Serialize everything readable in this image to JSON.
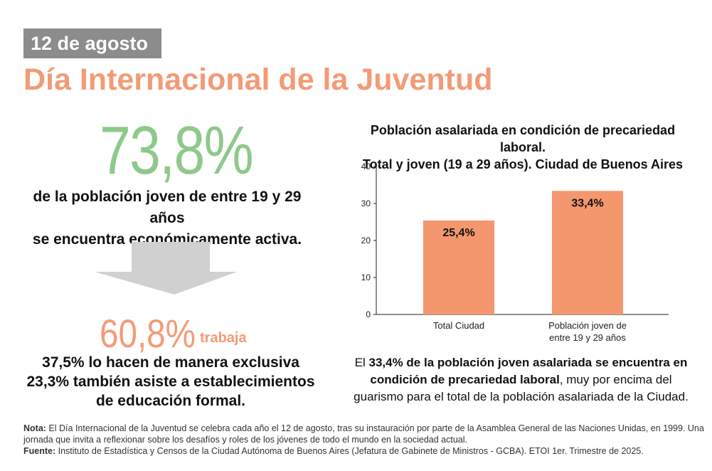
{
  "header": {
    "date": "12 de agosto",
    "title": "Día Internacional de la Juventud"
  },
  "left": {
    "big_stat": "73,8%",
    "big_stat_desc_line1": "de la población joven de entre 19 y 29 años",
    "big_stat_desc_line2": "se encuentra económicamente activa.",
    "stat2_value": "60,8%",
    "stat2_word": "trabaja",
    "detail_line1": "37,5% lo hacen de manera exclusiva",
    "detail_line2": "23,3% también asiste a establecimientos",
    "detail_line3": "de educación formal."
  },
  "colors": {
    "accent_orange": "#f29b77",
    "accent_green": "#8ec98b",
    "badge_gray": "#8c8c8c",
    "bar_fill": "#f4976f",
    "arrow_gray": "#d0d0d0"
  },
  "chart_data": {
    "type": "bar",
    "title_line1": "Población asalariada en condición de precariedad laboral.",
    "title_line2": "Total y joven (19 a 29 años). Ciudad de Buenos Aires",
    "categories": [
      "Total Ciudad",
      "Población joven de entre 19 y 29 años"
    ],
    "category_lines": [
      [
        "Total Ciudad"
      ],
      [
        "Población joven de",
        "entre 19 y 29 años"
      ]
    ],
    "values": [
      25.4,
      33.4
    ],
    "data_labels": [
      "25,4%",
      "33,4%"
    ],
    "yticks": [
      0,
      10,
      20,
      30,
      40
    ],
    "ylim": [
      0,
      40
    ],
    "grid": false,
    "legend": "none"
  },
  "caption": {
    "p1": "El ",
    "p2": "33,4% de la población joven asalariada se encuentra en condición de precariedad laboral",
    "p3": ", muy por encima del guarismo para el total de la población asalariada de la Ciudad."
  },
  "footnote": {
    "note_label": "Nota:",
    "note_text": " El Día Internacional de la Juventud se celebra cada año el 12 de agosto, tras su instauración por parte de la Asamblea General de las Naciones Unidas, en 1999. Una jornada que invita a reflexionar sobre los desafíos y roles de los jóvenes de todo el mundo en la sociedad actual.",
    "source_label": "Fuente:",
    "source_text": " Instituto de Estadística y Censos de la Ciudad Autónoma de Buenos Aires (Jefatura de Gabinete de Ministros - GCBA). ETOI 1er. Trimestre de 2025."
  }
}
